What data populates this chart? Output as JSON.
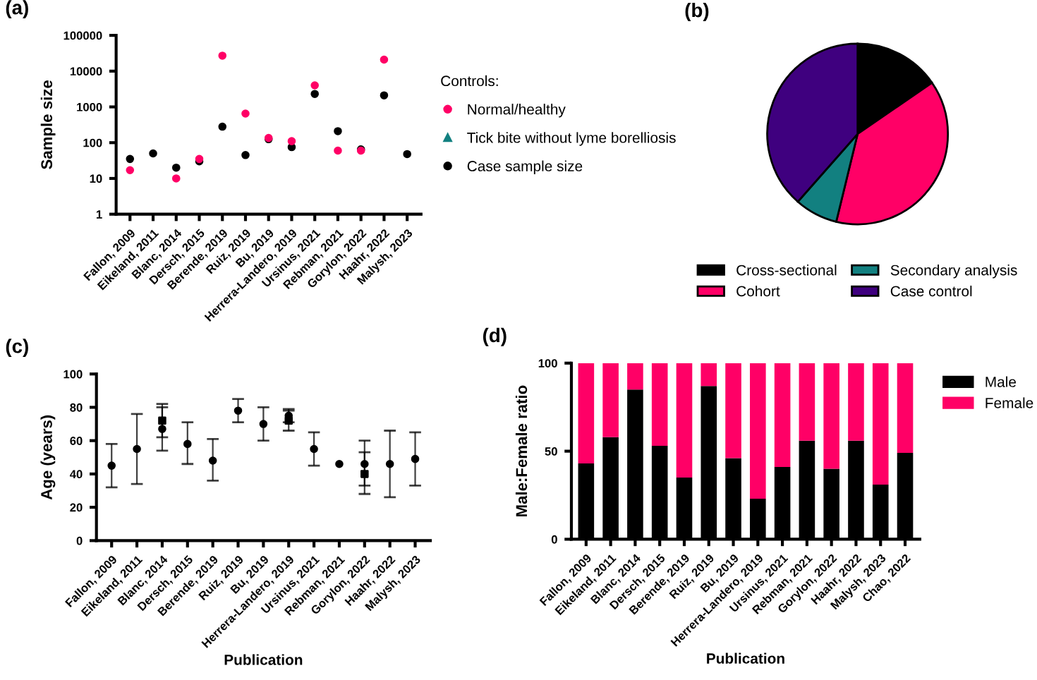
{
  "chart_data": [
    {
      "type": "scatter",
      "title": "(a)",
      "ylabel": "Sample size",
      "log": "y",
      "ylim": [
        1,
        100000
      ],
      "yticks": [
        1,
        10,
        100,
        1000,
        10000,
        100000
      ],
      "grid": false,
      "legend": "right",
      "legend_title": "Controls:",
      "categories": [
        "Fallon, 2009",
        "Eikeland, 2011",
        "Blanc, 2014",
        "Dersch, 2015",
        "Berende, 2019",
        "Ruiz, 2019",
        "Bu, 2019",
        "Herrera-Landero, 2019",
        "Ursinus, 2021",
        "Rebman, 2021",
        "Gorylon, 2022",
        "Haahr, 2022",
        "Malysh, 2023"
      ],
      "series": [
        {
          "name": "Normal/healthy",
          "color": "#ff0066",
          "marker": "circle",
          "values": [
            17,
            null,
            10,
            35,
            27000,
            650,
            135,
            110,
            4000,
            60,
            60,
            21000,
            null
          ]
        },
        {
          "name": "Tick bite without lyme borelliosis",
          "color": "#128080",
          "marker": "triangle",
          "values": [
            null,
            null,
            null,
            null,
            null,
            null,
            null,
            null,
            null,
            null,
            null,
            null,
            null
          ]
        },
        {
          "name": "Case sample size",
          "color": "#000000",
          "marker": "circle",
          "values": [
            35,
            50,
            20,
            30,
            280,
            45,
            125,
            75,
            2300,
            210,
            65,
            2100,
            48
          ]
        }
      ]
    },
    {
      "type": "pie",
      "title": "(b)",
      "legend": "bottom",
      "categories": [
        "Cross-sectional",
        "Cohort",
        "Secondary analysis",
        "Case control"
      ],
      "values": [
        15.4,
        38.4,
        7.7,
        38.5
      ],
      "colors": [
        "#000000",
        "#ff0066",
        "#128080",
        "#3f007f"
      ]
    },
    {
      "type": "scatter",
      "title": "(c)",
      "xlabel": "Publication",
      "ylabel": "Age (years)",
      "ylim": [
        0,
        100
      ],
      "yticks": [
        0,
        20,
        40,
        60,
        80,
        100
      ],
      "grid": false,
      "legend": false,
      "categories": [
        "Fallon, 2009",
        "Eikeland, 2011",
        "Blanc, 2014",
        "Dersch, 2015",
        "Berende, 2019",
        "Ruiz, 2019",
        "Bu, 2019",
        "Herrera-Landero, 2019",
        "Ursinus, 2021",
        "Rebman, 2021",
        "Gorylon, 2022",
        "Haahr, 2022",
        "Malysh, 2023"
      ],
      "series": [
        {
          "color": "#000000",
          "marker": "circle",
          "values": [
            45,
            55,
            67,
            58,
            48,
            78,
            70,
            75,
            55,
            46,
            46,
            46,
            49
          ],
          "errors": [
            [
              32,
              58
            ],
            [
              34,
              76
            ],
            [
              54,
              82
            ],
            [
              46,
              71
            ],
            [
              36,
              61
            ],
            [
              71,
              85
            ],
            [
              60,
              80
            ],
            [
              71,
              79
            ],
            [
              45,
              65
            ],
            null,
            [
              28,
              60
            ],
            [
              26,
              66
            ],
            [
              33,
              65
            ]
          ]
        },
        {
          "color": "#000000",
          "marker": "square",
          "values": [
            null,
            null,
            72,
            null,
            null,
            null,
            null,
            72,
            null,
            null,
            40,
            null,
            null
          ],
          "errors": [
            null,
            null,
            [
              62,
              80
            ],
            null,
            null,
            null,
            null,
            [
              66,
              78
            ],
            null,
            null,
            [
              33,
              53
            ],
            null,
            null
          ]
        }
      ]
    },
    {
      "type": "bar",
      "title": "(d)",
      "xlabel": "Publication",
      "ylabel": "Male:Female ratio",
      "stacked": true,
      "ylim": [
        0,
        100
      ],
      "yticks": [
        0,
        50,
        100
      ],
      "grid": false,
      "legend": "right",
      "categories": [
        "Fallon, 2009",
        "Eikeland, 2011",
        "Blanc, 2014",
        "Dersch, 2015",
        "Berende, 2019",
        "Ruiz, 2019",
        "Bu, 2019",
        "Herrera-Landero, 2019",
        "Ursinus, 2021",
        "Rebman, 2021",
        "Gorylon, 2022",
        "Haahr, 2022",
        "Malysh, 2023",
        "Chao, 2022"
      ],
      "series": [
        {
          "name": "Male",
          "color": "#000000",
          "values": [
            43,
            58,
            85,
            53,
            35,
            87,
            46,
            23,
            41,
            56,
            40,
            56,
            31,
            49
          ]
        },
        {
          "name": "Female",
          "color": "#ff0066",
          "values": [
            57,
            42,
            15,
            47,
            65,
            13,
            54,
            77,
            59,
            44,
            60,
            44,
            69,
            51
          ]
        }
      ]
    }
  ]
}
